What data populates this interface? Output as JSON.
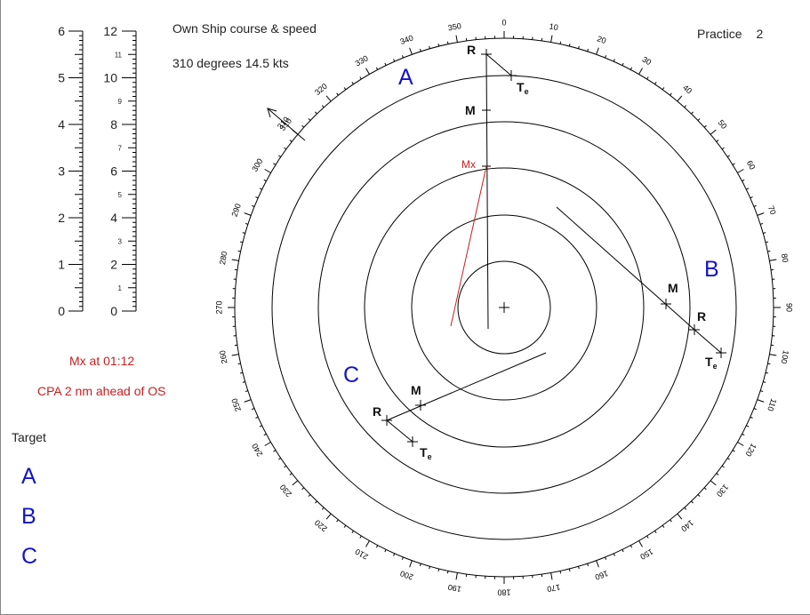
{
  "header": {
    "own_ship_label": "Own Ship course & speed",
    "own_ship_value": "310 degrees  14.5 kts",
    "practice_label": "Practice",
    "practice_number": "2"
  },
  "info": {
    "mx_line": "Mx   at 01:12",
    "cpa_line": "CPA  2  nm ahead of OS"
  },
  "target_panel": {
    "title": "Target",
    "items": [
      "A",
      "B",
      "C"
    ]
  },
  "scales": {
    "left_labels": [
      "6",
      "5",
      "4",
      "3",
      "2",
      "1",
      "0"
    ],
    "right_major_labels": [
      "12",
      "10",
      "8",
      "6",
      "4",
      "2",
      "0"
    ],
    "right_minor_labels": [
      "11",
      "9",
      "7",
      "5",
      "3",
      "1"
    ]
  },
  "plot": {
    "bearing_labels": [
      "0",
      "10",
      "20",
      "30",
      "40",
      "50",
      "60",
      "70",
      "80",
      "90",
      "100",
      "110",
      "120",
      "130",
      "140",
      "150",
      "160",
      "170",
      "180",
      "190",
      "200",
      "210",
      "220",
      "230",
      "240",
      "250",
      "260",
      "270",
      "280",
      "290",
      "300",
      "310",
      "320",
      "330",
      "340",
      "350"
    ],
    "course_arrow_label": "310",
    "ring_count": 5,
    "letters": {
      "a": "A",
      "b": "B",
      "c": "C"
    },
    "points": {
      "r": "R",
      "m": "M",
      "t": "T",
      "t_sub": "e",
      "mx": "Mx"
    },
    "colors": {
      "ink": "#000000",
      "target_blue": "#1414c8",
      "mx_red": "#c81e1e"
    }
  }
}
